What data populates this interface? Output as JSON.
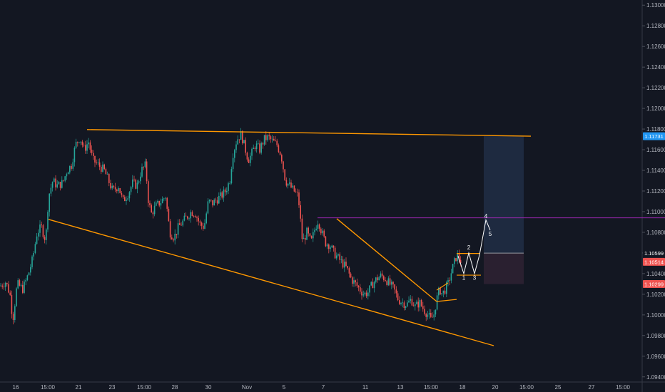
{
  "chart_data": {
    "type": "candlestick",
    "y_axis": {
      "position": "right",
      "range": [
        1.0935,
        1.1305
      ],
      "ticks": [
        "1.13000",
        "1.12800",
        "1.12600",
        "1.12400",
        "1.12200",
        "1.12000",
        "1.11800",
        "1.11600",
        "1.11400",
        "1.11200",
        "1.11000",
        "1.10800",
        "1.10600",
        "1.10400",
        "1.10200",
        "1.10000",
        "1.09800",
        "1.09600",
        "1.09400"
      ]
    },
    "x_axis": {
      "range": [
        0,
        932
      ],
      "tick_labels": [
        {
          "label": "16",
          "x": 22
        },
        {
          "label": "15:00",
          "x": 67
        },
        {
          "label": "21",
          "x": 110
        },
        {
          "label": "23",
          "x": 157
        },
        {
          "label": "15:00",
          "x": 202
        },
        {
          "label": "28",
          "x": 245
        },
        {
          "label": "30",
          "x": 292
        },
        {
          "label": "Nov",
          "x": 346
        },
        {
          "label": "5",
          "x": 398
        },
        {
          "label": "7",
          "x": 453
        },
        {
          "label": "11",
          "x": 512
        },
        {
          "label": "13",
          "x": 561
        },
        {
          "label": "15:00",
          "x": 604
        },
        {
          "label": "18",
          "x": 648
        },
        {
          "label": "20",
          "x": 694
        },
        {
          "label": "15:00",
          "x": 738
        },
        {
          "label": "25",
          "x": 782
        },
        {
          "label": "27",
          "x": 829
        },
        {
          "label": "15:00",
          "x": 873
        }
      ]
    },
    "price_path": [
      [
        0,
        1.1028
      ],
      [
        8,
        1.1032
      ],
      [
        14,
        1.102
      ],
      [
        18,
        1.0995
      ],
      [
        24,
        1.103
      ],
      [
        32,
        1.1025
      ],
      [
        40,
        1.104
      ],
      [
        46,
        1.1055
      ],
      [
        52,
        1.108
      ],
      [
        58,
        1.1085
      ],
      [
        64,
        1.1072
      ],
      [
        68,
        1.1115
      ],
      [
        74,
        1.113
      ],
      [
        80,
        1.1125
      ],
      [
        88,
        1.1128
      ],
      [
        94,
        1.114
      ],
      [
        100,
        1.1145
      ],
      [
        106,
        1.1165
      ],
      [
        112,
        1.1172
      ],
      [
        118,
        1.116
      ],
      [
        124,
        1.1168
      ],
      [
        130,
        1.115
      ],
      [
        138,
        1.1145
      ],
      [
        146,
        1.114
      ],
      [
        152,
        1.113
      ],
      [
        158,
        1.112
      ],
      [
        166,
        1.1125
      ],
      [
        172,
        1.111
      ],
      [
        180,
        1.1118
      ],
      [
        186,
        1.1128
      ],
      [
        192,
        1.1125
      ],
      [
        198,
        1.114
      ],
      [
        204,
        1.1145
      ],
      [
        208,
        1.111
      ],
      [
        212,
        1.1098
      ],
      [
        218,
        1.1105
      ],
      [
        226,
        1.111
      ],
      [
        232,
        1.1115
      ],
      [
        238,
        1.108
      ],
      [
        244,
        1.1075
      ],
      [
        250,
        1.1085
      ],
      [
        256,
        1.109
      ],
      [
        262,
        1.1095
      ],
      [
        268,
        1.11
      ],
      [
        274,
        1.1098
      ],
      [
        280,
        1.1088
      ],
      [
        286,
        1.1085
      ],
      [
        292,
        1.111
      ],
      [
        298,
        1.1108
      ],
      [
        304,
        1.1112
      ],
      [
        310,
        1.1115
      ],
      [
        316,
        1.112
      ],
      [
        322,
        1.113
      ],
      [
        326,
        1.1155
      ],
      [
        332,
        1.117
      ],
      [
        338,
        1.1175
      ],
      [
        344,
        1.116
      ],
      [
        348,
        1.115
      ],
      [
        352,
        1.1155
      ],
      [
        358,
        1.1165
      ],
      [
        364,
        1.116
      ],
      [
        370,
        1.117
      ],
      [
        376,
        1.1172
      ],
      [
        382,
        1.1168
      ],
      [
        388,
        1.1165
      ],
      [
        394,
        1.1155
      ],
      [
        400,
        1.113
      ],
      [
        406,
        1.1125
      ],
      [
        412,
        1.112
      ],
      [
        418,
        1.1115
      ],
      [
        424,
        1.107
      ],
      [
        430,
        1.108
      ],
      [
        436,
        1.107
      ],
      [
        442,
        1.1085
      ],
      [
        446,
        1.1092
      ],
      [
        450,
        1.1082
      ],
      [
        456,
        1.107
      ],
      [
        462,
        1.1068
      ],
      [
        468,
        1.106
      ],
      [
        474,
        1.1055
      ],
      [
        480,
        1.105
      ],
      [
        486,
        1.1045
      ],
      [
        492,
        1.1035
      ],
      [
        498,
        1.103
      ],
      [
        504,
        1.1025
      ],
      [
        510,
        1.102
      ],
      [
        516,
        1.1022
      ],
      [
        522,
        1.103
      ],
      [
        528,
        1.1035
      ],
      [
        534,
        1.1038
      ],
      [
        540,
        1.1035
      ],
      [
        546,
        1.103
      ],
      [
        552,
        1.1025
      ],
      [
        558,
        1.1015
      ],
      [
        564,
        1.1012
      ],
      [
        570,
        1.101
      ],
      [
        576,
        1.1015
      ],
      [
        582,
        1.1008
      ],
      [
        588,
        1.1012
      ],
      [
        594,
        1.1005
      ],
      [
        600,
        1.1
      ],
      [
        604,
        1.0995
      ],
      [
        608,
        1.1
      ],
      [
        612,
        1.1015
      ],
      [
        616,
        1.1025
      ],
      [
        620,
        1.102
      ],
      [
        624,
        1.1025
      ],
      [
        628,
        1.103
      ],
      [
        634,
        1.1045
      ],
      [
        640,
        1.1058
      ],
      [
        646,
        1.1052
      ]
    ],
    "trendlines": [
      {
        "from": [
          122,
          1.11795
        ],
        "to": [
          744,
          1.11731
        ],
        "color": "#ff9800"
      },
      {
        "from": [
          68,
          1.10925
        ],
        "to": [
          692,
          1.09702
        ],
        "color": "#ff9800"
      },
      {
        "from": [
          472,
          1.10932
        ],
        "to": [
          612,
          1.1013
        ],
        "color": "#ff9800"
      }
    ],
    "horizontal_line": {
      "price": 1.1094,
      "from_x": 445,
      "to_x": 932,
      "color": "#9c27b0"
    },
    "position": {
      "x_start": 678,
      "x_end": 734,
      "entry": 1.10599,
      "target": 1.11731,
      "stop": 1.10299,
      "target_color": "#1e2a40",
      "stop_color": "#2a2030"
    },
    "labels": [
      {
        "text": "1",
        "x": 650,
        "price": 1.1036
      },
      {
        "text": "2",
        "x": 657,
        "price": 1.10655
      },
      {
        "text": "3",
        "x": 665,
        "price": 1.1036
      },
      {
        "text": "4",
        "x": 681,
        "price": 1.1096
      },
      {
        "text": "5",
        "x": 687,
        "price": 1.10785
      }
    ],
    "price_badges": [
      {
        "text": "1.11731",
        "price": 1.11731,
        "color": "#2196f3"
      },
      {
        "text": "1.10599",
        "price": 1.10599,
        "color": "#131722"
      },
      {
        "text": "1.10514",
        "price": 1.10514,
        "color": "#ef5350"
      },
      {
        "text": "1.10299",
        "price": 1.10299,
        "color": "#ef5350"
      }
    ],
    "colors": {
      "up": "#26a69a",
      "down": "#ef5350",
      "background": "#131722",
      "axis_text": "#b2b5be"
    }
  }
}
